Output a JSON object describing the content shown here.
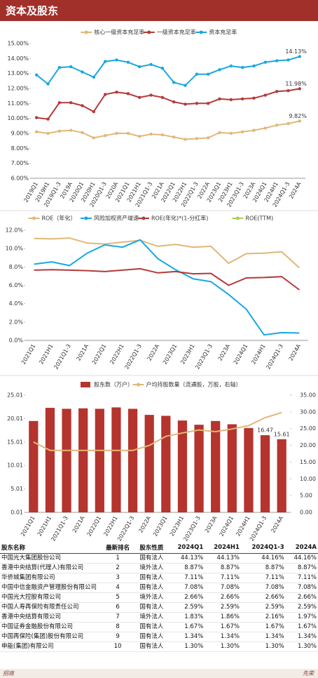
{
  "header": {
    "title": "资本及股东"
  },
  "chart_data": [
    {
      "type": "line",
      "markers": true,
      "categories": [
        "2019Q1",
        "2019H1",
        "2019Q1-3",
        "2019A",
        "2020Q1",
        "2020H1",
        "2020Q1-3",
        "2020A",
        "2021Q1",
        "2021H1",
        "2021Q1-3",
        "2021A",
        "2022Q1",
        "2022H1",
        "2022Q1-3",
        "2022A",
        "2023Q1",
        "2023H1",
        "2023Q1-3",
        "2023A",
        "2024Q1",
        "2024H1",
        "2024Q1-3",
        "2024A"
      ],
      "series": [
        {
          "name": "核心一级资本充足率",
          "color": "#e0b878",
          "values": [
            9.1,
            9.0,
            9.15,
            9.2,
            9.05,
            8.7,
            8.85,
            9.0,
            9.0,
            8.8,
            8.95,
            8.9,
            8.75,
            8.6,
            8.65,
            8.7,
            9.05,
            9.0,
            9.1,
            9.2,
            9.35,
            9.55,
            9.65,
            9.82
          ],
          "value_labels": [
            null,
            null,
            null,
            null,
            null,
            null,
            null,
            null,
            null,
            null,
            null,
            null,
            null,
            null,
            null,
            null,
            null,
            null,
            null,
            null,
            null,
            null,
            null,
            "9.82%"
          ]
        },
        {
          "name": "一级资本充足率",
          "color": "#b33a3a",
          "values": [
            10.05,
            9.95,
            11.05,
            11.05,
            10.85,
            10.45,
            11.6,
            11.75,
            11.65,
            11.4,
            11.55,
            11.4,
            11.1,
            10.95,
            11.0,
            11.0,
            11.3,
            11.25,
            11.3,
            11.35,
            11.55,
            11.8,
            11.85,
            11.98
          ],
          "value_labels": [
            null,
            null,
            null,
            null,
            null,
            null,
            null,
            null,
            null,
            null,
            null,
            null,
            null,
            null,
            null,
            null,
            null,
            null,
            null,
            null,
            null,
            null,
            null,
            "11.98%"
          ]
        },
        {
          "name": "资本充足率",
          "color": "#1aa7e0",
          "values": [
            12.9,
            12.3,
            13.4,
            13.45,
            13.1,
            12.75,
            13.8,
            13.9,
            13.75,
            13.45,
            13.6,
            13.35,
            12.4,
            12.2,
            12.95,
            12.95,
            13.25,
            13.5,
            13.4,
            13.5,
            13.75,
            13.85,
            13.9,
            14.13
          ],
          "value_labels": [
            null,
            null,
            null,
            null,
            null,
            null,
            null,
            null,
            null,
            null,
            null,
            null,
            null,
            null,
            null,
            null,
            null,
            null,
            null,
            null,
            null,
            null,
            null,
            "14.13%"
          ]
        }
      ],
      "ylim": [
        6,
        15
      ],
      "yticks": [
        {
          "value": 6,
          "label": "6.00%"
        },
        {
          "value": 7,
          "label": "7.00%"
        },
        {
          "value": 8,
          "label": "8.00%"
        },
        {
          "value": 9,
          "label": "9.00%"
        },
        {
          "value": 10,
          "label": "10.00%"
        },
        {
          "value": 11,
          "label": "11.00%"
        },
        {
          "value": 12,
          "label": "12.00%"
        },
        {
          "value": 13,
          "label": "13.00%"
        },
        {
          "value": 14,
          "label": "14.00%"
        },
        {
          "value": 15,
          "label": "15.00%"
        }
      ],
      "grid": false
    },
    {
      "type": "line",
      "markers": false,
      "categories": [
        "2021Q1",
        "2021H1",
        "2021Q1-3",
        "2021A",
        "2022Q1",
        "2022H1",
        "2022Q1-3",
        "2022A",
        "2023Q1",
        "2023H1",
        "2023Q1-3",
        "2023A",
        "2024Q1",
        "2024H1",
        "2024Q1-3",
        "2024A"
      ],
      "series": [
        {
          "name": "ROE（年化）",
          "color": "#e0b878",
          "values": [
            11.1,
            11.05,
            11.15,
            10.6,
            10.5,
            10.7,
            10.9,
            10.25,
            10.45,
            10.15,
            10.25,
            8.4,
            9.45,
            9.5,
            9.65,
            7.9
          ]
        },
        {
          "name": "风险加权资产增速",
          "color": "#1aa7e0",
          "values": [
            8.3,
            8.55,
            8.15,
            9.5,
            10.4,
            10.15,
            10.95,
            8.9,
            7.7,
            6.7,
            6.4,
            5.0,
            3.4,
            0.6,
            0.85,
            0.8
          ]
        },
        {
          "name": "ROE(年化)*(1-分红率)",
          "color": "#b33a3a",
          "values": [
            7.65,
            7.7,
            7.65,
            7.6,
            7.5,
            7.65,
            7.8,
            7.35,
            7.5,
            7.25,
            7.3,
            6.0,
            6.8,
            6.85,
            6.95,
            5.5
          ]
        },
        {
          "name": "ROE(TTM)",
          "color": "#a8cf5a",
          "values": [
            null,
            null,
            null,
            null,
            null,
            null,
            null,
            null,
            null,
            null,
            null,
            null,
            null,
            null,
            null,
            null
          ]
        }
      ],
      "ylim": [
        0,
        12
      ],
      "yticks": [
        {
          "value": 0,
          "label": "0.0%"
        },
        {
          "value": 2,
          "label": "2.0%"
        },
        {
          "value": 4,
          "label": "4.0%"
        },
        {
          "value": 6,
          "label": "6.0%"
        },
        {
          "value": 8,
          "label": "8.0%"
        },
        {
          "value": 10,
          "label": "10.0%"
        },
        {
          "value": 12,
          "label": "12.0%"
        }
      ],
      "grid": false
    },
    {
      "type": "bar",
      "markers": false,
      "categories": [
        "2021Q1",
        "2021H1",
        "2021Q1-3",
        "2021A",
        "2022Q1",
        "2022H1",
        "2022Q1-3",
        "2022A",
        "2023Q1",
        "2023H1",
        "2023Q1-3",
        "2023A",
        "2024Q1",
        "2024H1",
        "2024Q1-3",
        "2024A"
      ],
      "series": [
        {
          "name": "股东数（万户）",
          "color": "#b5342e",
          "values": [
            19.5,
            22.3,
            22.1,
            22.2,
            22.1,
            22.4,
            22.1,
            20.8,
            20.6,
            19.6,
            18.7,
            19.5,
            18.8,
            18.0,
            16.47,
            15.61
          ],
          "value_labels": [
            null,
            null,
            null,
            null,
            null,
            null,
            null,
            null,
            null,
            null,
            null,
            null,
            null,
            null,
            "16.47",
            "15.61"
          ]
        },
        {
          "name": "户均持股数量（流通股，万股，右轴）",
          "color": "#e0b878",
          "type": "line",
          "axis": "y2",
          "values": [
            21.0,
            18.5,
            18.5,
            18.5,
            18.5,
            18.5,
            18.5,
            20.0,
            22.7,
            23.7,
            24.6,
            24.1,
            24.9,
            25.9,
            28.3,
            29.8
          ]
        }
      ],
      "ylim": [
        0.01,
        25.01
      ],
      "yticks": [
        0.01,
        5.01,
        10.01,
        15.01,
        20.01,
        25.01
      ],
      "y2lim": [
        0,
        35
      ],
      "y2ticks": [
        {
          "value": 0,
          "label": "0.00"
        },
        {
          "value": 5,
          "label": "5.00"
        },
        {
          "value": 10,
          "label": "10.00"
        },
        {
          "value": 15,
          "label": "15.00"
        },
        {
          "value": 20,
          "label": "20.00"
        },
        {
          "value": 25,
          "label": "25.00"
        },
        {
          "value": 30,
          "label": "30.00"
        },
        {
          "value": 35,
          "label": "35.00"
        }
      ],
      "grid": false
    }
  ],
  "table": {
    "header": [
      "股东名称",
      "最新排名",
      "股东性质",
      "2024Q1",
      "2024H1",
      "2024Q1-3",
      "2024A"
    ],
    "rows": [
      [
        "中国光大集团股份公司",
        "1",
        "国有法人",
        "44.13%",
        "44.13%",
        "44.16%",
        "44.16%"
      ],
      [
        "香港中央结算(代理人)有限公司",
        "2",
        "境外法人",
        "8.87%",
        "8.87%",
        "8.87%",
        "8.87%"
      ],
      [
        "华侨城集团有限公司",
        "3",
        "国有法人",
        "7.11%",
        "7.11%",
        "7.11%",
        "7.11%"
      ],
      [
        "中国中信金融资产管理股份有限公司",
        "4",
        "国有法人",
        "7.08%",
        "7.08%",
        "7.08%",
        "7.08%"
      ],
      [
        "中国光大控股有限公司",
        "5",
        "境外法人",
        "2.66%",
        "2.66%",
        "2.66%",
        "2.66%"
      ],
      [
        "中国人寿再保险有限责任公司",
        "6",
        "国有法人",
        "2.59%",
        "2.59%",
        "2.59%",
        "2.59%"
      ],
      [
        "香港中央结算有限公司",
        "7",
        "境外法人",
        "1.83%",
        "1.86%",
        "2.16%",
        "1.97%"
      ],
      [
        "中国证券金融股份有限公司",
        "8",
        "国有法人",
        "1.67%",
        "1.67%",
        "1.67%",
        "1.67%"
      ],
      [
        "中国再保险(集团)股份有限公司",
        "9",
        "国有法人",
        "1.34%",
        "1.34%",
        "1.34%",
        "1.34%"
      ],
      [
        "申能(集团)有限公司",
        "10",
        "国有法人",
        "1.30%",
        "1.30%",
        "1.30%",
        "1.30%"
      ]
    ]
  },
  "footer": {
    "left": "招商",
    "right": "先荣"
  }
}
